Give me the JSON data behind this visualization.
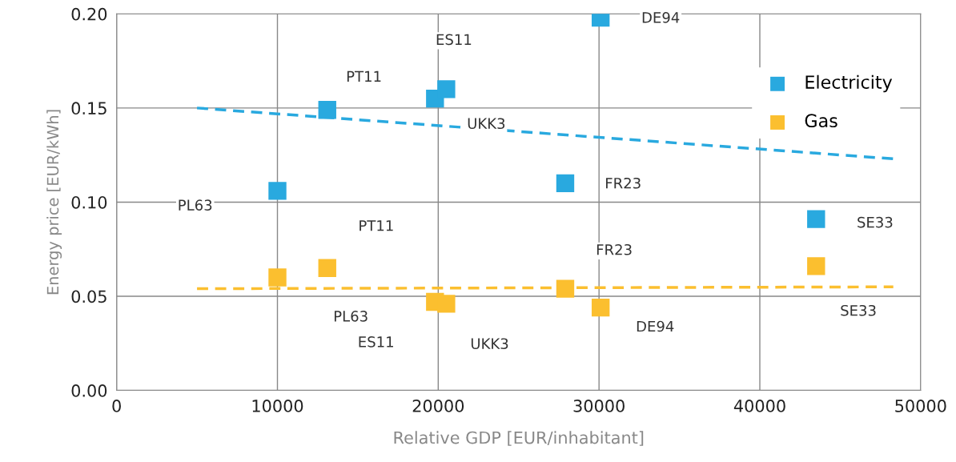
{
  "chart_data": {
    "type": "scatter",
    "xlabel": "Relative GDP [EUR/inhabitant]",
    "ylabel": "Energy price [EUR/kWh]",
    "xlim": [
      0,
      50000
    ],
    "xticks": [
      0,
      10000,
      20000,
      30000,
      40000,
      50000
    ],
    "ylim": [
      0,
      0.2
    ],
    "yticks": [
      {
        "value": 0,
        "label": "0.00"
      },
      {
        "value": 0.05,
        "label": "0.05"
      },
      {
        "value": 0.1,
        "label": "0.10"
      },
      {
        "value": 0.15,
        "label": "0.15"
      },
      {
        "value": 0.2,
        "label": "0.20"
      }
    ],
    "grid": true,
    "legend": "top right",
    "series": [
      {
        "name": "Electricity",
        "color": "#29a9df",
        "marker": "square",
        "x": [
          10000,
          13100,
          19800,
          20500,
          27900,
          30100,
          43500
        ],
        "values": [
          0.106,
          0.149,
          0.155,
          0.16,
          0.11,
          0.198,
          0.091
        ]
      },
      {
        "name": "Gas",
        "color": "#fbbf2f",
        "marker": "square",
        "x": [
          10000,
          13100,
          19800,
          20500,
          27900,
          30100,
          43500
        ],
        "values": [
          0.06,
          0.065,
          0.047,
          0.046,
          0.054,
          0.044,
          0.066
        ]
      },
      {
        "type": "line",
        "line_style": "dashed",
        "marker": "none",
        "color": "#29a9df",
        "x": [
          5000,
          48300
        ],
        "values": [
          0.15,
          0.123
        ]
      },
      {
        "type": "line",
        "line_style": "dashed",
        "marker": "none",
        "color": "#fbbf2f",
        "x": [
          5000,
          48300
        ],
        "values": [
          0.054,
          0.055
        ]
      }
    ],
    "annotations": [
      "PL63",
      "PT11",
      "ES11",
      "UKK3",
      "FR23",
      "DE94",
      "SE33",
      "PL63",
      "PT11",
      "ES11",
      "UKK3",
      "FR23",
      "DE94",
      "SE33"
    ]
  }
}
